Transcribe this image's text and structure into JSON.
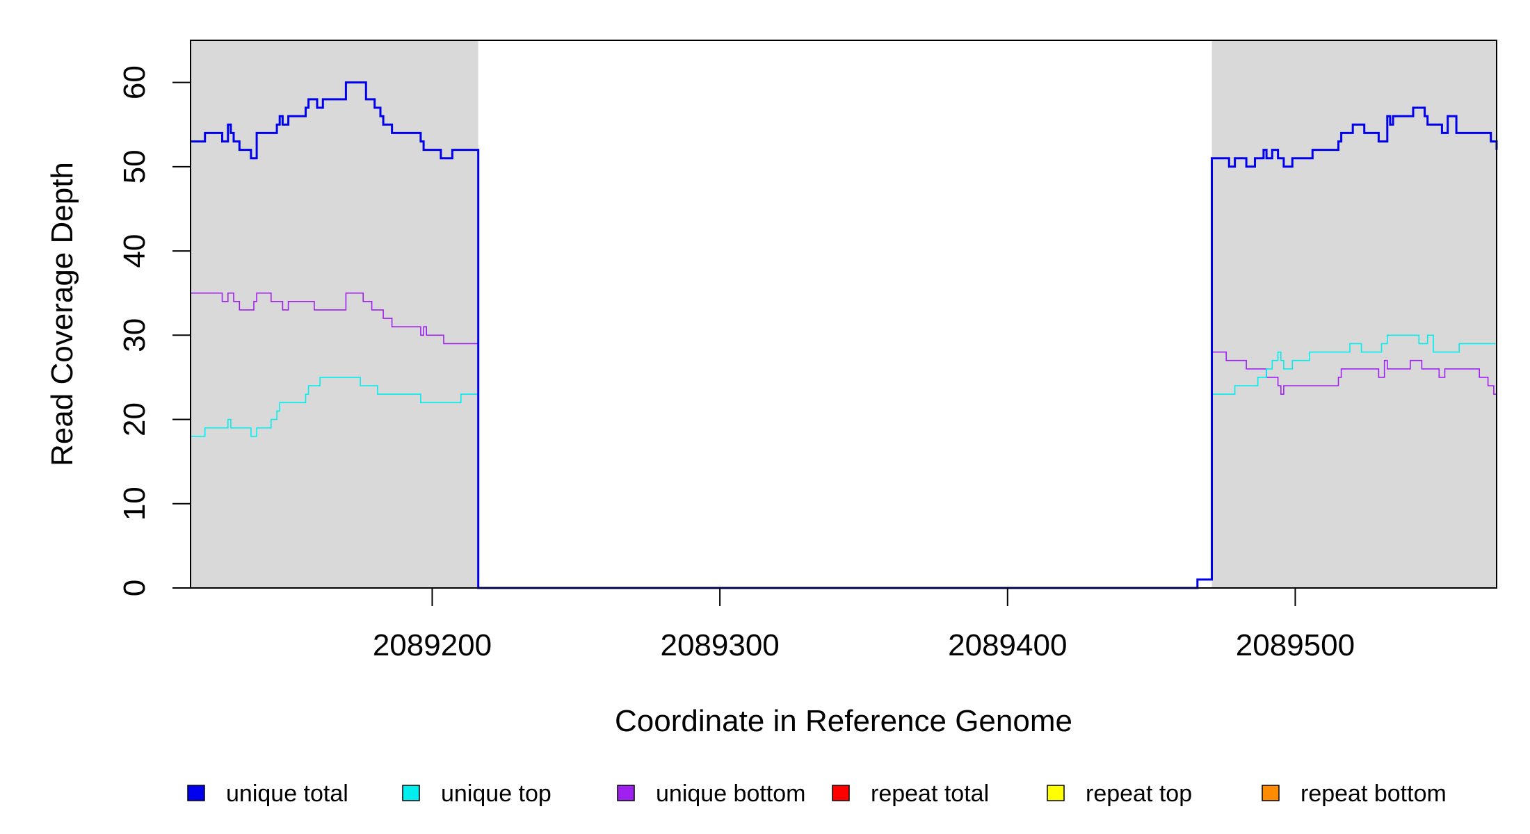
{
  "chart_data": {
    "type": "line",
    "title": "",
    "xlabel": "Coordinate in Reference Genome",
    "ylabel": "Read Coverage Depth",
    "xlim": [
      2089116,
      2089570
    ],
    "ylim": [
      0,
      65
    ],
    "x_ticks": [
      2089200,
      2089300,
      2089400,
      2089500
    ],
    "x_tick_labels": [
      "2089200",
      "2089300",
      "2089400",
      "2089500"
    ],
    "y_ticks": [
      0,
      10,
      20,
      30,
      40,
      50,
      60
    ],
    "y_tick_labels": [
      "0",
      "10",
      "20",
      "30",
      "40",
      "50",
      "60"
    ],
    "grid": false,
    "legend_position": "bottom",
    "shaded_regions": [
      {
        "x": [
          2089116,
          2089216
        ],
        "color": "#d9d9d9"
      },
      {
        "x": [
          2089471,
          2089570
        ],
        "color": "#d9d9d9"
      }
    ],
    "series": [
      {
        "name": "unique total",
        "color": "#0000ee",
        "stroke_width": 3,
        "points": [
          [
            2089116,
            53
          ],
          [
            2089121,
            54
          ],
          [
            2089127,
            53
          ],
          [
            2089129,
            55
          ],
          [
            2089130,
            54
          ],
          [
            2089131,
            53
          ],
          [
            2089133,
            52
          ],
          [
            2089137,
            51
          ],
          [
            2089139,
            54
          ],
          [
            2089146,
            55
          ],
          [
            2089147,
            56
          ],
          [
            2089148,
            55
          ],
          [
            2089150,
            56
          ],
          [
            2089156,
            57
          ],
          [
            2089157,
            58
          ],
          [
            2089160,
            57
          ],
          [
            2089162,
            58
          ],
          [
            2089170,
            60
          ],
          [
            2089177,
            58
          ],
          [
            2089180,
            57
          ],
          [
            2089182,
            56
          ],
          [
            2089183,
            55
          ],
          [
            2089186,
            54
          ],
          [
            2089196,
            53
          ],
          [
            2089197,
            52
          ],
          [
            2089203,
            51
          ],
          [
            2089207,
            52
          ],
          [
            2089216,
            0
          ],
          [
            2089466,
            1
          ],
          [
            2089471,
            51
          ],
          [
            2089477,
            50
          ],
          [
            2089479,
            51
          ],
          [
            2089483,
            50
          ],
          [
            2089486,
            51
          ],
          [
            2089489,
            52
          ],
          [
            2089490,
            51
          ],
          [
            2089492,
            52
          ],
          [
            2089494,
            51
          ],
          [
            2089496,
            50
          ],
          [
            2089499,
            51
          ],
          [
            2089506,
            52
          ],
          [
            2089515,
            53
          ],
          [
            2089516,
            54
          ],
          [
            2089520,
            55
          ],
          [
            2089524,
            54
          ],
          [
            2089529,
            53
          ],
          [
            2089532,
            56
          ],
          [
            2089533,
            55
          ],
          [
            2089534,
            56
          ],
          [
            2089541,
            57
          ],
          [
            2089545,
            56
          ],
          [
            2089546,
            55
          ],
          [
            2089551,
            54
          ],
          [
            2089553,
            56
          ],
          [
            2089556,
            54
          ],
          [
            2089568,
            53
          ],
          [
            2089570,
            52
          ]
        ]
      },
      {
        "name": "unique top",
        "color": "#00eeee",
        "stroke_width": 1.6,
        "points": [
          [
            2089116,
            18
          ],
          [
            2089121,
            19
          ],
          [
            2089129,
            20
          ],
          [
            2089130,
            19
          ],
          [
            2089137,
            18
          ],
          [
            2089139,
            19
          ],
          [
            2089144,
            20
          ],
          [
            2089146,
            21
          ],
          [
            2089147,
            22
          ],
          [
            2089156,
            23
          ],
          [
            2089157,
            24
          ],
          [
            2089161,
            25
          ],
          [
            2089175,
            24
          ],
          [
            2089181,
            23
          ],
          [
            2089196,
            22
          ],
          [
            2089210,
            23
          ],
          [
            2089216,
            0
          ],
          [
            2089466,
            1
          ],
          [
            2089471,
            23
          ],
          [
            2089479,
            24
          ],
          [
            2089487,
            25
          ],
          [
            2089490,
            26
          ],
          [
            2089492,
            27
          ],
          [
            2089494,
            28
          ],
          [
            2089495,
            27
          ],
          [
            2089496,
            26
          ],
          [
            2089499,
            27
          ],
          [
            2089505,
            28
          ],
          [
            2089519,
            29
          ],
          [
            2089523,
            28
          ],
          [
            2089530,
            29
          ],
          [
            2089532,
            30
          ],
          [
            2089543,
            29
          ],
          [
            2089546,
            30
          ],
          [
            2089548,
            28
          ],
          [
            2089557,
            29
          ],
          [
            2089570,
            29
          ]
        ]
      },
      {
        "name": "unique bottom",
        "color": "#a020f0",
        "stroke_width": 1.6,
        "points": [
          [
            2089116,
            35
          ],
          [
            2089127,
            34
          ],
          [
            2089129,
            35
          ],
          [
            2089131,
            34
          ],
          [
            2089133,
            33
          ],
          [
            2089138,
            34
          ],
          [
            2089139,
            35
          ],
          [
            2089144,
            34
          ],
          [
            2089148,
            33
          ],
          [
            2089150,
            34
          ],
          [
            2089159,
            33
          ],
          [
            2089170,
            35
          ],
          [
            2089176,
            34
          ],
          [
            2089179,
            33
          ],
          [
            2089183,
            32
          ],
          [
            2089186,
            31
          ],
          [
            2089196,
            30
          ],
          [
            2089197,
            31
          ],
          [
            2089198,
            30
          ],
          [
            2089204,
            29
          ],
          [
            2089216,
            0
          ],
          [
            2089466,
            1
          ],
          [
            2089471,
            28
          ],
          [
            2089476,
            27
          ],
          [
            2089483,
            26
          ],
          [
            2089490,
            25
          ],
          [
            2089494,
            24
          ],
          [
            2089495,
            23
          ],
          [
            2089496,
            24
          ],
          [
            2089515,
            25
          ],
          [
            2089516,
            26
          ],
          [
            2089529,
            25
          ],
          [
            2089531,
            27
          ],
          [
            2089532,
            26
          ],
          [
            2089540,
            27
          ],
          [
            2089544,
            26
          ],
          [
            2089550,
            25
          ],
          [
            2089552,
            26
          ],
          [
            2089564,
            25
          ],
          [
            2089567,
            24
          ],
          [
            2089569,
            23
          ],
          [
            2089570,
            23
          ]
        ]
      },
      {
        "name": "repeat total",
        "color": "#ff0000",
        "stroke_width": 2,
        "points": [
          [
            2089116,
            0
          ],
          [
            2089570,
            0
          ]
        ]
      },
      {
        "name": "repeat top",
        "color": "#ffff00",
        "stroke_width": 2,
        "points": [
          [
            2089116,
            0
          ],
          [
            2089570,
            0
          ]
        ]
      },
      {
        "name": "repeat bottom",
        "color": "#ff8c00",
        "stroke_width": 2,
        "points": [
          [
            2089116,
            0
          ],
          [
            2089570,
            0
          ]
        ]
      }
    ],
    "legend": [
      {
        "label": "unique total",
        "color": "#0000ee"
      },
      {
        "label": "unique top",
        "color": "#00eeee"
      },
      {
        "label": "unique bottom",
        "color": "#a020f0"
      },
      {
        "label": "repeat total",
        "color": "#ff0000"
      },
      {
        "label": "repeat top",
        "color": "#ffff00"
      },
      {
        "label": "repeat bottom",
        "color": "#ff8c00"
      }
    ]
  }
}
